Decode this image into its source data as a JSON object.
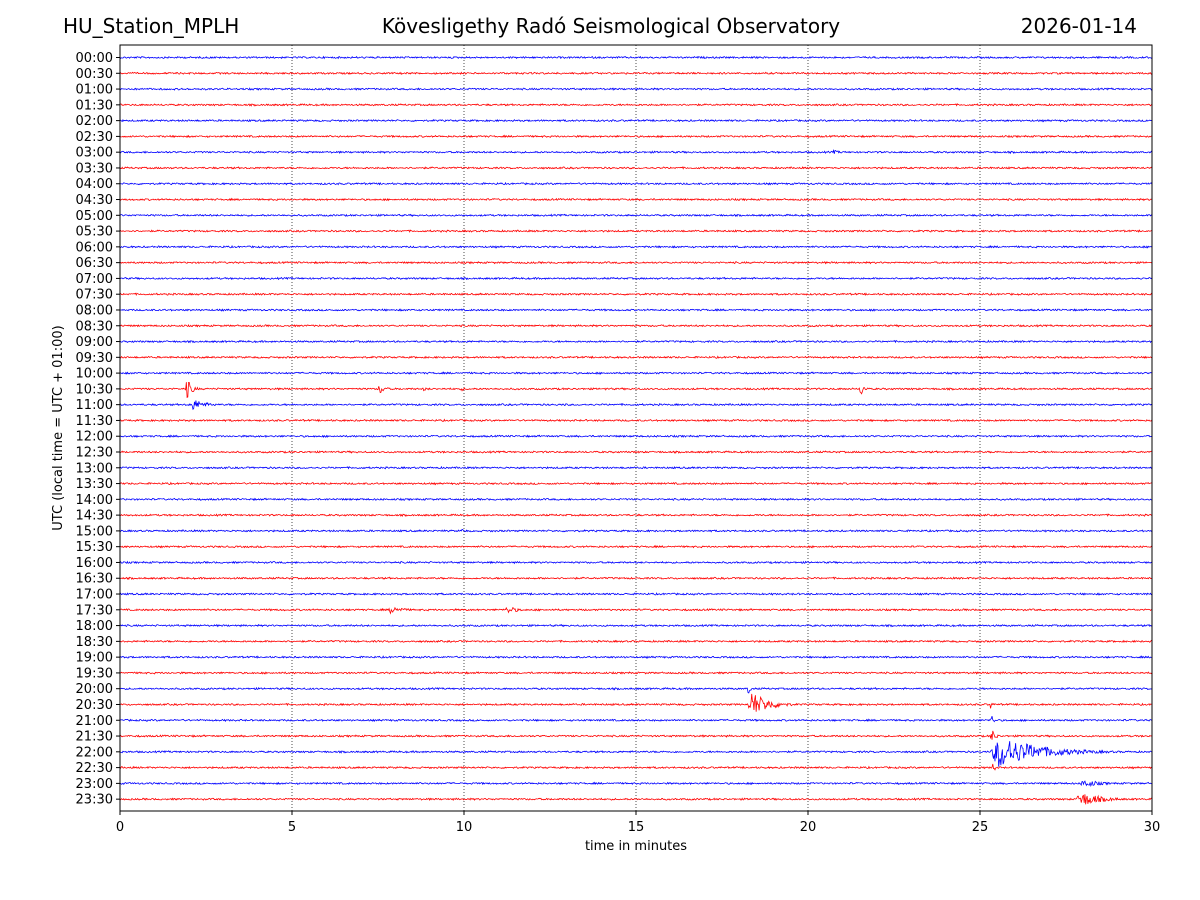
{
  "header": {
    "station": "HU_Station_MPLH",
    "title": "Kövesligethy Radó Seismological Observatory",
    "date": "2026-01-14"
  },
  "colors": {
    "even_trace": "#0000ff",
    "odd_trace": "#ff0000",
    "axes": "#000000",
    "grid": "#000000"
  },
  "chart_data": {
    "type": "line",
    "xlabel": "time in minutes",
    "ylabel": "UTC (local time = UTC + 01:00)",
    "xlim": [
      0,
      30
    ],
    "x_ticks": [
      0,
      5,
      10,
      15,
      20,
      25,
      30
    ],
    "grid": "vertical dotted at each x tick",
    "legend": "none",
    "rows": [
      "00:00",
      "00:30",
      "01:00",
      "01:30",
      "02:00",
      "02:30",
      "03:00",
      "03:30",
      "04:00",
      "04:30",
      "05:00",
      "05:30",
      "06:00",
      "06:30",
      "07:00",
      "07:30",
      "08:00",
      "08:30",
      "09:00",
      "09:30",
      "10:00",
      "10:30",
      "11:00",
      "11:30",
      "12:00",
      "12:30",
      "13:00",
      "13:30",
      "14:00",
      "14:30",
      "15:00",
      "15:30",
      "16:00",
      "16:30",
      "17:00",
      "17:30",
      "18:00",
      "18:30",
      "19:00",
      "19:30",
      "20:00",
      "20:30",
      "21:00",
      "21:30",
      "22:00",
      "22:30",
      "23:00",
      "23:30"
    ],
    "noise_amplitude": 1,
    "events": [
      {
        "row": "03:00",
        "start_min": 20.7,
        "duration_min": 1.0,
        "amplitude": 2.5
      },
      {
        "row": "10:30",
        "start_min": 1.9,
        "duration_min": 0.6,
        "amplitude": 14
      },
      {
        "row": "10:30",
        "start_min": 7.5,
        "duration_min": 0.6,
        "amplitude": 8
      },
      {
        "row": "10:30",
        "start_min": 8.8,
        "duration_min": 0.6,
        "amplitude": 3
      },
      {
        "row": "10:30",
        "start_min": 9.9,
        "duration_min": 0.4,
        "amplitude": 3
      },
      {
        "row": "10:30",
        "start_min": 14.1,
        "duration_min": 0.3,
        "amplitude": 3
      },
      {
        "row": "10:30",
        "start_min": 21.5,
        "duration_min": 0.4,
        "amplitude": 11
      },
      {
        "row": "11:00",
        "start_min": 2.0,
        "duration_min": 1.5,
        "amplitude": 8
      },
      {
        "row": "11:00",
        "start_min": 12.9,
        "duration_min": 0.4,
        "amplitude": 2
      },
      {
        "row": "15:00",
        "start_min": 9.9,
        "duration_min": 0.6,
        "amplitude": 3
      },
      {
        "row": "17:30",
        "start_min": 7.8,
        "duration_min": 1.5,
        "amplitude": 5
      },
      {
        "row": "17:30",
        "start_min": 11.2,
        "duration_min": 1.2,
        "amplitude": 5
      },
      {
        "row": "20:00",
        "start_min": 18.25,
        "duration_min": 0.2,
        "amplitude": 12
      },
      {
        "row": "20:30",
        "start_min": 18.25,
        "duration_min": 2.0,
        "amplitude": 16
      },
      {
        "row": "20:30",
        "start_min": 25.3,
        "duration_min": 0.15,
        "amplitude": 7
      },
      {
        "row": "21:00",
        "start_min": 25.3,
        "duration_min": 0.3,
        "amplitude": 9
      },
      {
        "row": "21:30",
        "start_min": 25.3,
        "duration_min": 0.5,
        "amplitude": 10
      },
      {
        "row": "22:00",
        "start_min": 25.3,
        "duration_min": 4.7,
        "amplitude": 20
      },
      {
        "row": "22:30",
        "start_min": 25.35,
        "duration_min": 0.3,
        "amplitude": 7
      },
      {
        "row": "23:00",
        "start_min": 27.9,
        "duration_min": 2.1,
        "amplitude": 5
      },
      {
        "row": "23:30",
        "start_min": 27.8,
        "duration_min": 2.2,
        "amplitude": 10
      }
    ]
  }
}
